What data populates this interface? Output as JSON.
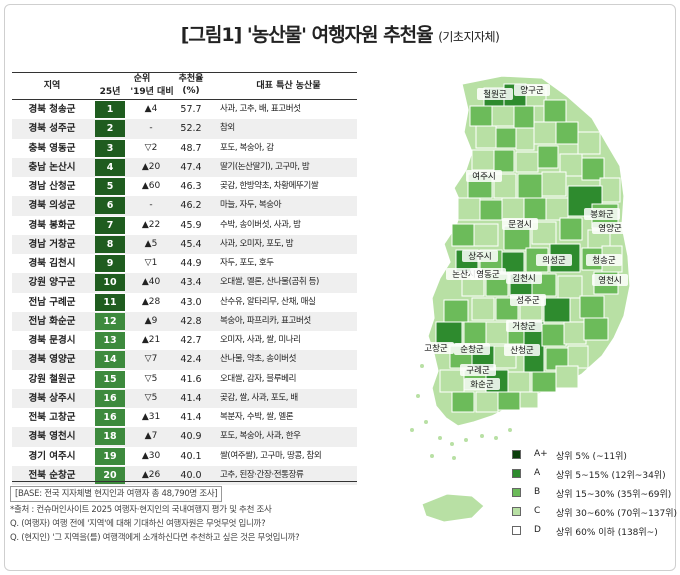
{
  "title": "[그림1] '농산물' 여행자원 추천율",
  "subtitle": "(기초지자체)",
  "headers": {
    "region": "지역",
    "rank": "순위",
    "rank25": "25년",
    "change": "'19년 대비",
    "rate_top": "추천율",
    "rate_unit": "(%)",
    "product": "대표 특산 농산물"
  },
  "chart_data": {
    "type": "table",
    "rows": [
      {
        "region": "경북 청송군",
        "rank": "1",
        "change": "▲4",
        "rate": "57.7",
        "product": "사과, 고추, 배, 표고버섯"
      },
      {
        "region": "경북 성주군",
        "rank": "2",
        "change": "-",
        "rate": "52.2",
        "product": "참외"
      },
      {
        "region": "충북 영동군",
        "rank": "3",
        "change": "▽2",
        "rate": "48.7",
        "product": "포도, 복숭아, 감"
      },
      {
        "region": "충남 논산시",
        "rank": "4",
        "change": "▲20",
        "rate": "47.4",
        "product": "딸기(논산딸기), 고구마, 밤"
      },
      {
        "region": "경남 산청군",
        "rank": "5",
        "change": "▲60",
        "rate": "46.3",
        "product": "곶감, 한방약초, 차황메뚜기쌀"
      },
      {
        "region": "경북 의성군",
        "rank": "6",
        "change": "-",
        "rate": "46.2",
        "product": "마늘, 자두, 복숭아"
      },
      {
        "region": "경북 봉화군",
        "rank": "7",
        "change": "▲22",
        "rate": "45.9",
        "product": "수박, 송이버섯, 사과, 밤"
      },
      {
        "region": "경남 거창군",
        "rank": "8",
        "change": "▲5",
        "rate": "45.4",
        "product": "사과, 오미자, 포도, 밤"
      },
      {
        "region": "경북 김천시",
        "rank": "9",
        "change": "▽1",
        "rate": "44.9",
        "product": "자두, 포도, 호두"
      },
      {
        "region": "강원 양구군",
        "rank": "10",
        "change": "▲40",
        "rate": "43.4",
        "product": "오대쌀, 멜론, 산나물(곰취 등)"
      },
      {
        "region": "전남 구례군",
        "rank": "11",
        "change": "▲28",
        "rate": "43.0",
        "product": "산수유, 알타리무, 산채, 매실"
      },
      {
        "region": "전남 화순군",
        "rank": "12",
        "change": "▲9",
        "rate": "42.8",
        "product": "복숭아, 파프리카, 표고버섯"
      },
      {
        "region": "경북 문경시",
        "rank": "13",
        "change": "▲21",
        "rate": "42.7",
        "product": "오미자, 사과, 쌀, 미나리"
      },
      {
        "region": "경북 영양군",
        "rank": "14",
        "change": "▽7",
        "rate": "42.4",
        "product": "산나물, 약초, 송이버섯"
      },
      {
        "region": "강원 철원군",
        "rank": "15",
        "change": "▽5",
        "rate": "41.6",
        "product": "오대쌀, 감자, 블루베리"
      },
      {
        "region": "경북 상주시",
        "rank": "16",
        "change": "▽5",
        "rate": "41.4",
        "product": "곶감, 쌀, 사과, 포도, 배"
      },
      {
        "region": "전북 고창군",
        "rank": "16",
        "change": "▲31",
        "rate": "41.4",
        "product": "복분자, 수박, 쌀, 멜론"
      },
      {
        "region": "경북 영천시",
        "rank": "18",
        "change": "▲7",
        "rate": "40.9",
        "product": "포도, 복숭아, 사과, 한우"
      },
      {
        "region": "경기 여주시",
        "rank": "19",
        "change": "▲30",
        "rate": "40.1",
        "product": "쌀(여주쌀), 고구마, 땅콩, 참외"
      },
      {
        "region": "전북 순창군",
        "rank": "20",
        "change": "▲26",
        "rate": "40.0",
        "product": "고추, 된장·간장·전통장류"
      }
    ]
  },
  "map_labels": [
    "철원군",
    "양구군",
    "여주시",
    "봉화군",
    "영양군",
    "문경시",
    "상주시",
    "의성군",
    "청송군",
    "논산시",
    "영동군",
    "김천시",
    "영천시",
    "성주군",
    "고창군",
    "순창군",
    "거창군",
    "산청군",
    "구례군",
    "화순군"
  ],
  "legend": [
    {
      "grade": "A+",
      "desc": "상위 5% (~11위)",
      "color": "#0b3d0b"
    },
    {
      "grade": "A",
      "desc": "상위 5~15% (12위~34위)",
      "color": "#2e8b2e"
    },
    {
      "grade": "B",
      "desc": "상위 15~30% (35위~69위)",
      "color": "#6cbb5a"
    },
    {
      "grade": "C",
      "desc": "상위 30~60% (70위~137위)",
      "color": "#b8e0a4"
    },
    {
      "grade": "D",
      "desc": "상위 60% 이하 (138위~)",
      "color": "#ffffff"
    }
  ],
  "notes": {
    "base": "[BASE: 전국 지자체별 현지인과 여행자 총 48,790명 조사]",
    "source": "*출처 : 컨슈머인사이트 2025 여행자·현지인의 국내여행지 평가 및 추천 조사",
    "q1": "Q. (여행자) 여행 전에 '지역'에 대해 기대하신 여행자원은 무엇무엇 입니까?",
    "q2": "Q. (현지인) '그 지역을(를) 여행객에게 소개하신다면 추천하고 싶은 것은 무엇입니까?"
  }
}
